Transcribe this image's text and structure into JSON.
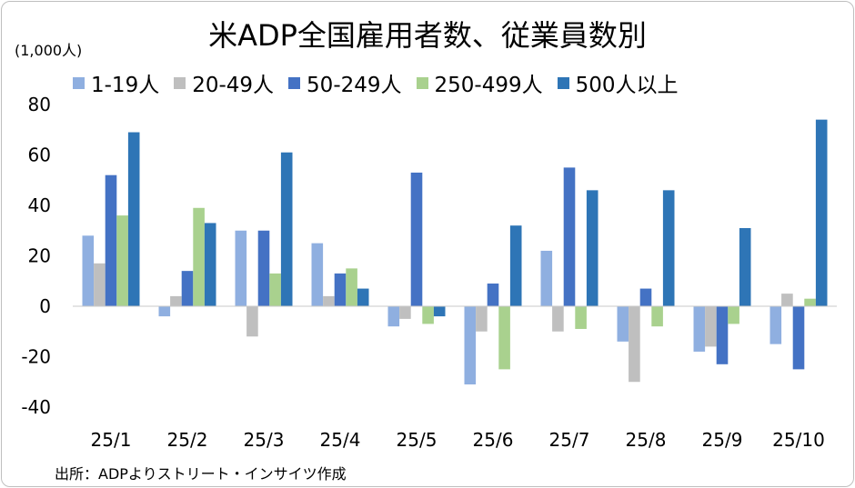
{
  "chart_data": {
    "type": "bar",
    "title": "米ADP全国雇用者数、従業員数別",
    "unit_label": "(1,000人)",
    "categories": [
      "25/1",
      "25/2",
      "25/3",
      "25/4",
      "25/5",
      "25/6",
      "25/7",
      "25/8",
      "25/9",
      "25/10"
    ],
    "series": [
      {
        "name": "1-19人",
        "color": "#8fafe0",
        "values": [
          28,
          -4,
          30,
          25,
          -8,
          -31,
          22,
          -14,
          -18,
          -15
        ]
      },
      {
        "name": "20-49人",
        "color": "#bfbfbf",
        "values": [
          17,
          4,
          -12,
          4,
          -5,
          -10,
          -10,
          -30,
          -16,
          5
        ]
      },
      {
        "name": "50-249人",
        "color": "#4472c4",
        "values": [
          52,
          14,
          30,
          13,
          53,
          9,
          55,
          7,
          -23,
          -25
        ]
      },
      {
        "name": "250-499人",
        "color": "#a9d18e",
        "values": [
          36,
          39,
          13,
          15,
          -7,
          -25,
          -9,
          -8,
          -7,
          3
        ]
      },
      {
        "name": "500人以上",
        "color": "#2e75b6",
        "values": [
          69,
          33,
          61,
          7,
          -4,
          32,
          46,
          46,
          31,
          74
        ]
      }
    ],
    "ylim": [
      -40,
      80
    ],
    "yticks": [
      -40,
      -20,
      0,
      20,
      40,
      60,
      80
    ],
    "ytick_labels": [
      "-40",
      "-20",
      "0",
      "20",
      "40",
      "60",
      "80"
    ],
    "grid": false,
    "legend_position": "top",
    "xlabel": "",
    "ylabel": ""
  },
  "source": "出所：ADPよりストリート・インサイツ作成"
}
